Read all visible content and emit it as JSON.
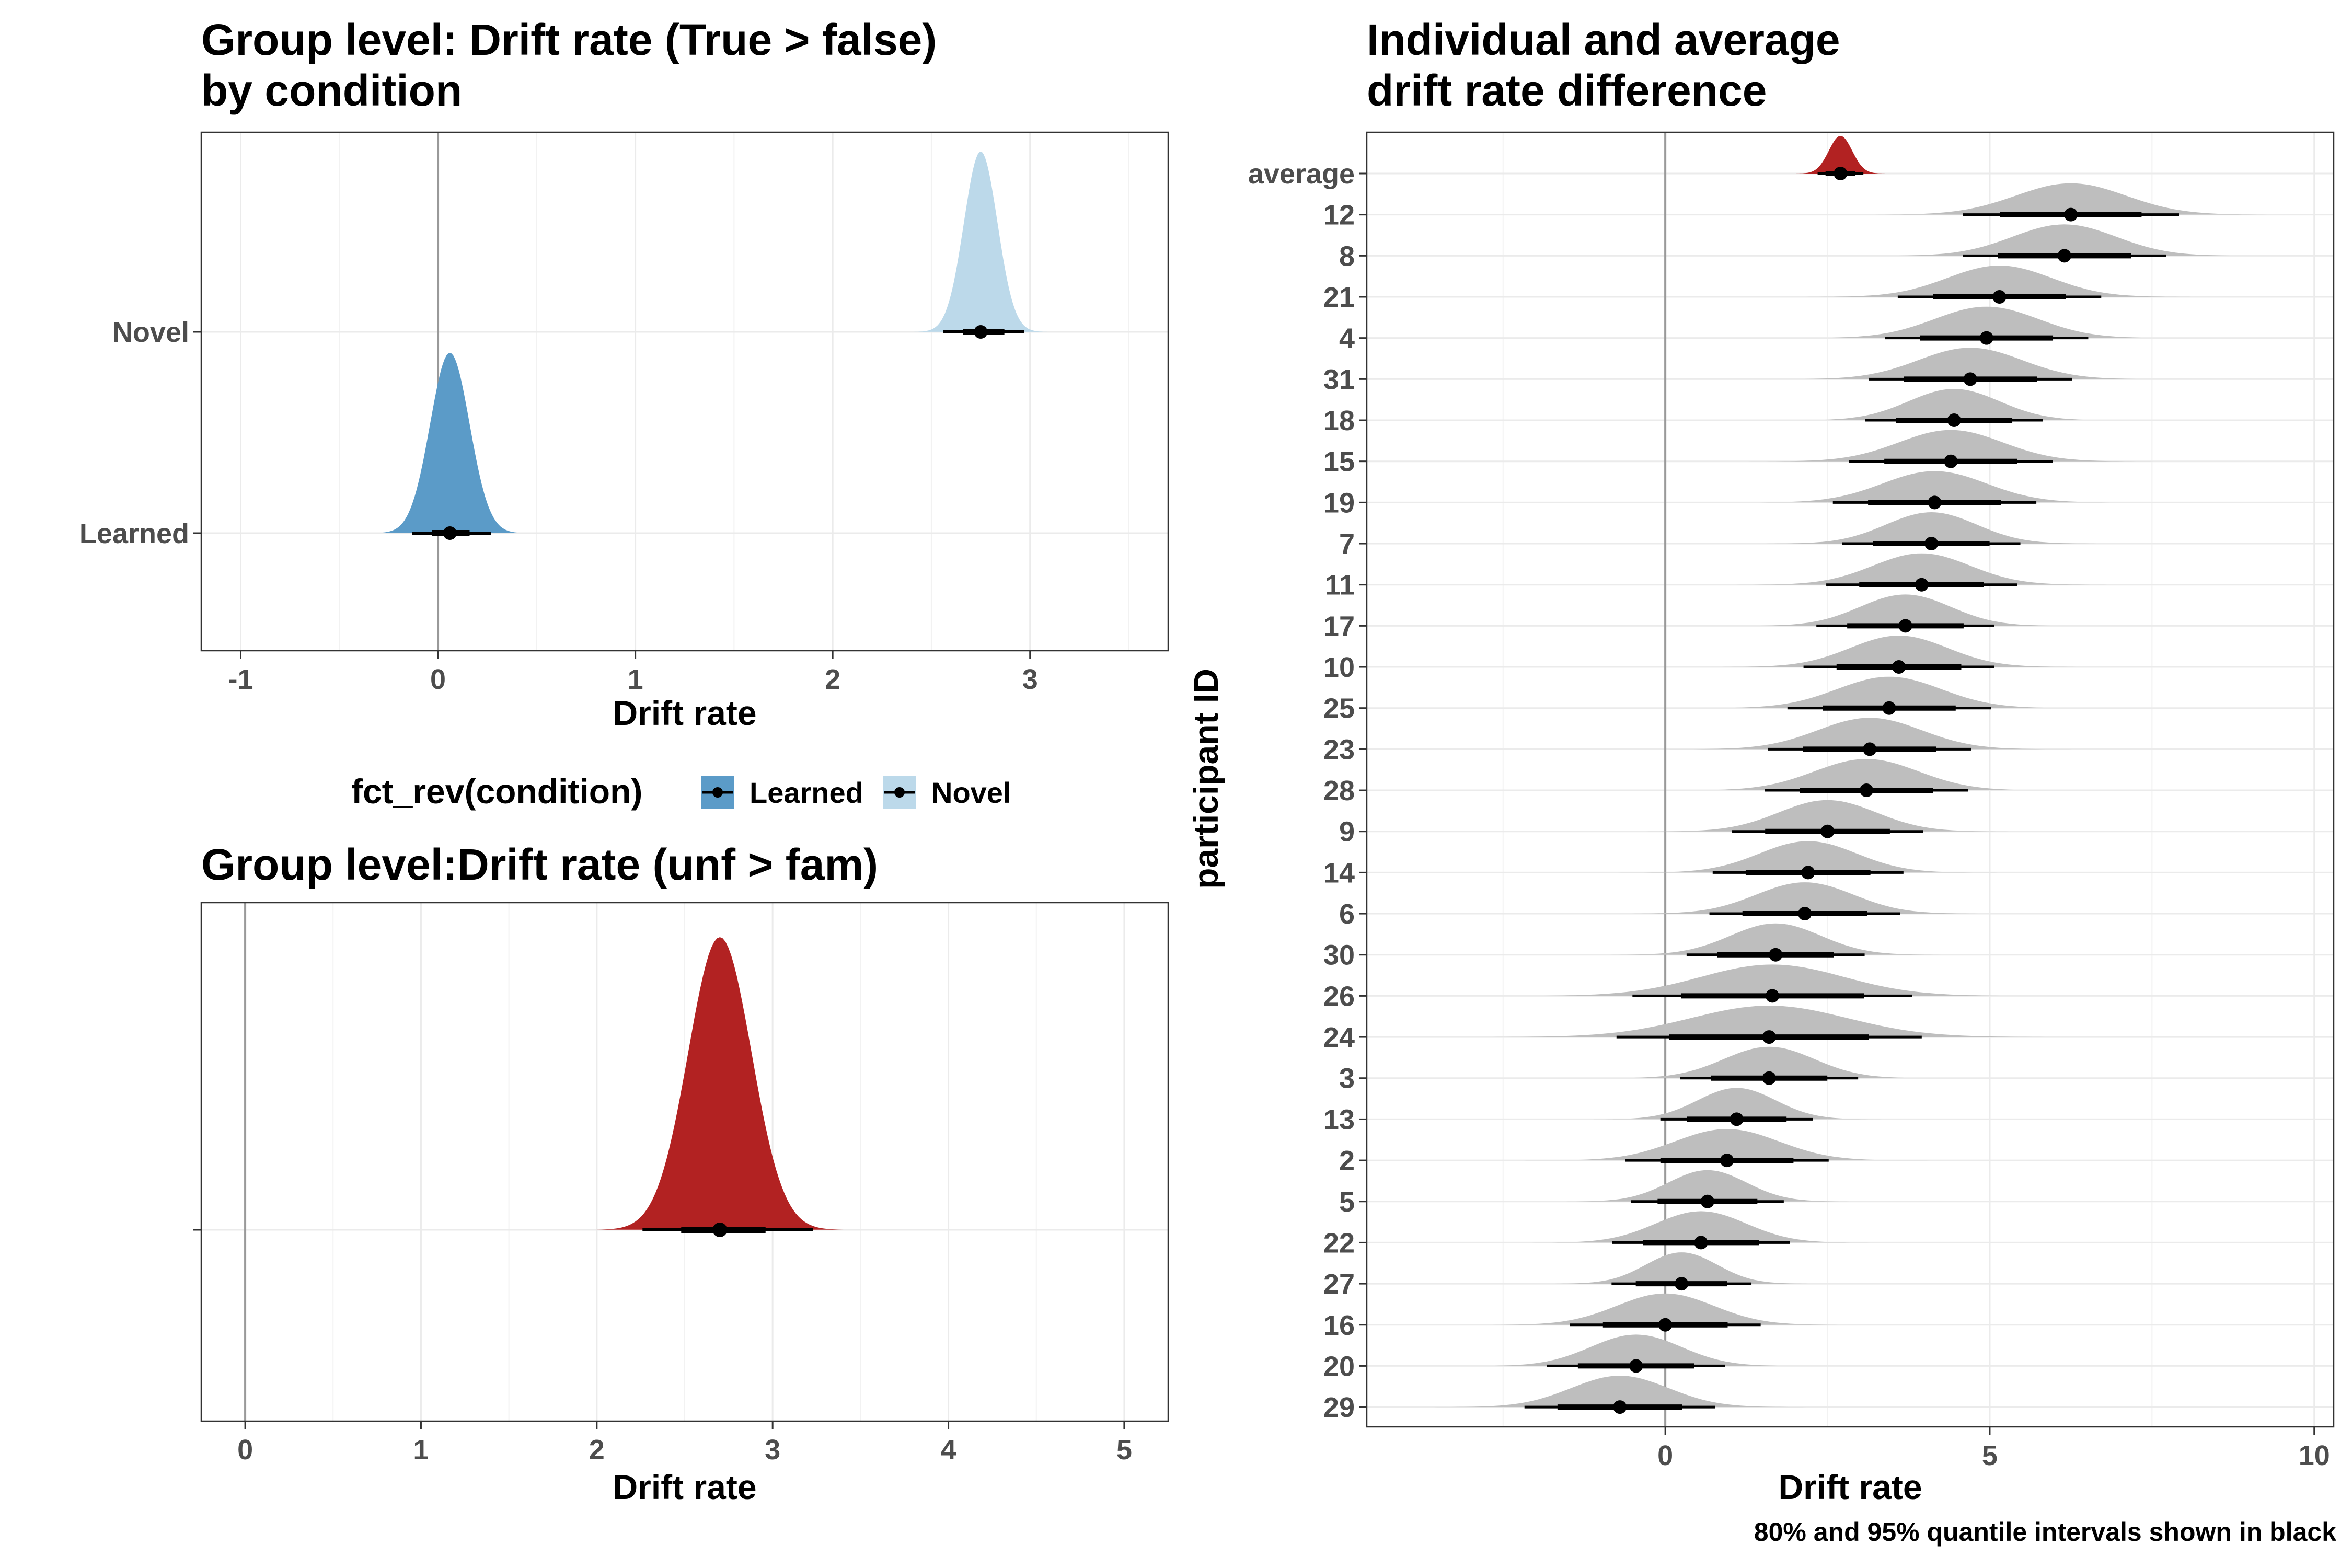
{
  "colors": {
    "learned": "#5b9bc8",
    "novel": "#bcd9ea",
    "red": "#b22222",
    "individual": "#bebebe",
    "interval": "#000000"
  },
  "chart_data": [
    {
      "type": "density",
      "title": "Group level: Drift rate (True > false)\nby condition",
      "xlabel": "Drift rate",
      "ylabel": "",
      "xlim": [
        -1.2,
        3.7
      ],
      "x_ticks": [
        -1,
        0,
        1,
        2,
        3
      ],
      "vline": 0,
      "grid": true,
      "categories": [
        "Learned",
        "Novel"
      ],
      "legend": {
        "title": "fct_rev(condition)",
        "position": "bottom",
        "entries": [
          {
            "label": "Learned",
            "color": "#5b9bc8"
          },
          {
            "label": "Novel",
            "color": "#bcd9ea"
          }
        ]
      },
      "series": [
        {
          "name": "Learned",
          "mean": 0.06,
          "sd": 0.1,
          "interval_80": [
            -0.03,
            0.16
          ],
          "interval_95": [
            -0.13,
            0.27
          ]
        },
        {
          "name": "Novel",
          "mean": 2.75,
          "sd": 0.085,
          "interval_80": [
            2.66,
            2.87
          ],
          "interval_95": [
            2.56,
            2.97
          ]
        }
      ]
    },
    {
      "type": "density",
      "title": "Group level:Drift rate (unf > fam)",
      "xlabel": "Drift rate",
      "ylabel": "",
      "xlim": [
        -0.25,
        5.25
      ],
      "x_ticks": [
        0,
        1,
        2,
        3,
        4,
        5
      ],
      "vline": 0,
      "grid": true,
      "series": [
        {
          "name": "",
          "mean": 2.7,
          "sd": 0.18,
          "interval_80": [
            2.48,
            2.96
          ],
          "interval_95": [
            2.26,
            3.23
          ]
        }
      ]
    },
    {
      "type": "density",
      "title": "Individual and average\ndrift rate difference",
      "xlabel": "Drift rate",
      "ylabel": "participant ID",
      "caption": "80% and 95% quantile intervals shown in black",
      "xlim": [
        -4.6,
        10.3
      ],
      "x_ticks": [
        0,
        5,
        10
      ],
      "vline": 0,
      "grid": true,
      "categories": [
        "average",
        "12",
        "8",
        "21",
        "4",
        "31",
        "18",
        "15",
        "19",
        "7",
        "11",
        "17",
        "10",
        "25",
        "23",
        "28",
        "9",
        "14",
        "6",
        "30",
        "26",
        "24",
        "3",
        "13",
        "2",
        "5",
        "22",
        "27",
        "16",
        "20",
        "29"
      ],
      "series": [
        {
          "name": "average",
          "mean": 2.7,
          "sd": 0.18
        },
        {
          "name": "12",
          "mean": 6.25,
          "sd": 0.85
        },
        {
          "name": "8",
          "mean": 6.15,
          "sd": 0.8
        },
        {
          "name": "21",
          "mean": 5.15,
          "sd": 0.8
        },
        {
          "name": "4",
          "mean": 4.95,
          "sd": 0.8
        },
        {
          "name": "31",
          "mean": 4.7,
          "sd": 0.8
        },
        {
          "name": "18",
          "mean": 4.45,
          "sd": 0.7
        },
        {
          "name": "15",
          "mean": 4.4,
          "sd": 0.8
        },
        {
          "name": "19",
          "mean": 4.15,
          "sd": 0.8
        },
        {
          "name": "7",
          "mean": 4.1,
          "sd": 0.7
        },
        {
          "name": "11",
          "mean": 3.95,
          "sd": 0.75
        },
        {
          "name": "17",
          "mean": 3.7,
          "sd": 0.7
        },
        {
          "name": "10",
          "mean": 3.6,
          "sd": 0.75
        },
        {
          "name": "25",
          "mean": 3.45,
          "sd": 0.8
        },
        {
          "name": "23",
          "mean": 3.15,
          "sd": 0.8
        },
        {
          "name": "28",
          "mean": 3.1,
          "sd": 0.8
        },
        {
          "name": "9",
          "mean": 2.5,
          "sd": 0.75
        },
        {
          "name": "14",
          "mean": 2.2,
          "sd": 0.75
        },
        {
          "name": "6",
          "mean": 2.15,
          "sd": 0.75
        },
        {
          "name": "30",
          "mean": 1.7,
          "sd": 0.7
        },
        {
          "name": "26",
          "mean": 1.65,
          "sd": 1.1
        },
        {
          "name": "24",
          "mean": 1.6,
          "sd": 1.2
        },
        {
          "name": "3",
          "mean": 1.6,
          "sd": 0.7
        },
        {
          "name": "13",
          "mean": 1.1,
          "sd": 0.6
        },
        {
          "name": "2",
          "mean": 0.95,
          "sd": 0.8
        },
        {
          "name": "5",
          "mean": 0.65,
          "sd": 0.6
        },
        {
          "name": "22",
          "mean": 0.55,
          "sd": 0.7
        },
        {
          "name": "27",
          "mean": 0.25,
          "sd": 0.55
        },
        {
          "name": "16",
          "mean": 0.0,
          "sd": 0.75
        },
        {
          "name": "20",
          "mean": -0.45,
          "sd": 0.7
        },
        {
          "name": "29",
          "mean": -0.7,
          "sd": 0.75
        }
      ]
    }
  ]
}
